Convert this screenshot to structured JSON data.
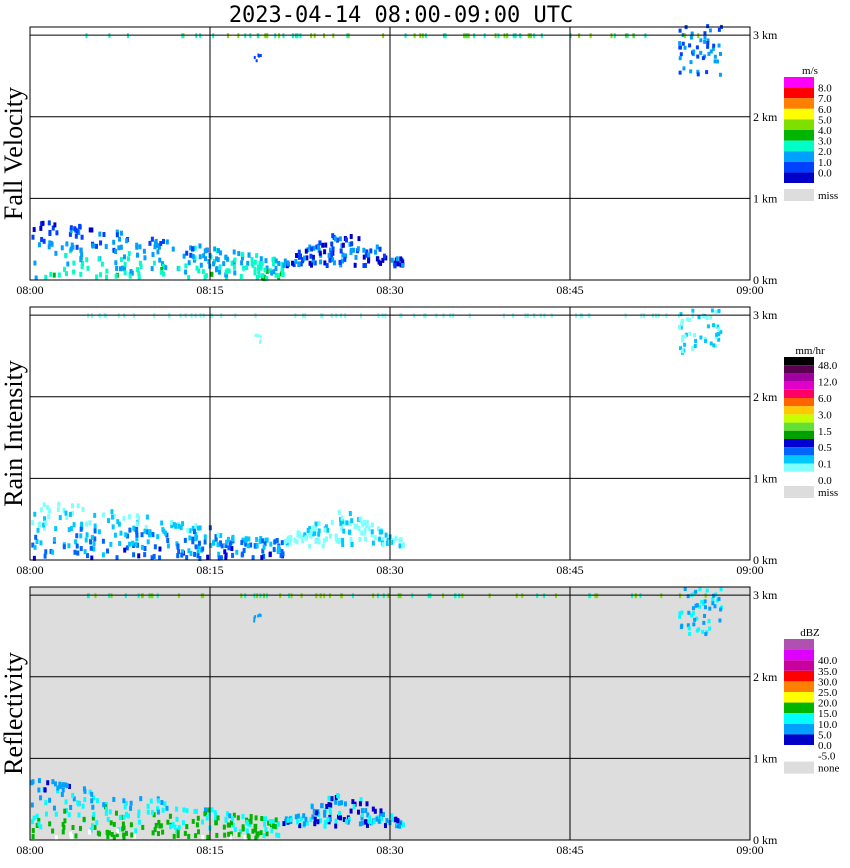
{
  "title": "2023-04-14   08:00-09:00 UTC",
  "chart_data": [
    {
      "type": "heatmap",
      "name": "Fall Velocity",
      "ylabel": "Fall Velocity",
      "unit": "m/s",
      "x_ticks": [
        "08:00",
        "08:15",
        "08:30",
        "08:45",
        "09:00"
      ],
      "y_ticks": [
        "0 km",
        "1 km",
        "2 km",
        "3 km"
      ],
      "xlim": [
        0,
        60
      ],
      "ylim": [
        0,
        3.1
      ],
      "background": "#ffffff",
      "colorbar": [
        {
          "label": "8.0",
          "color": "#ff00ff"
        },
        {
          "label": "7.0",
          "color": "#ff0000"
        },
        {
          "label": "6.0",
          "color": "#ff7f00"
        },
        {
          "label": "5.0",
          "color": "#ffff00"
        },
        {
          "label": "4.0",
          "color": "#7fe000"
        },
        {
          "label": "3.0",
          "color": "#00b400"
        },
        {
          "label": "2.0",
          "color": "#00ffc8"
        },
        {
          "label": "1.0",
          "color": "#00a0ff"
        },
        {
          "label": "0.0",
          "color": "#0040ff"
        },
        {
          "label": "",
          "color": "#0000c8"
        },
        {
          "label": "miss",
          "color": "#dddddd"
        }
      ]
    },
    {
      "type": "heatmap",
      "name": "Rain Intensity",
      "ylabel": "Rain Intensity",
      "unit": "mm/hr",
      "x_ticks": [
        "08:00",
        "08:15",
        "08:30",
        "08:45",
        "09:00"
      ],
      "y_ticks": [
        "0 km",
        "1 km",
        "2 km",
        "3 km"
      ],
      "xlim": [
        0,
        60
      ],
      "ylim": [
        0,
        3.1
      ],
      "background": "#ffffff",
      "colorbar": [
        {
          "label": "48.0",
          "color": "#000000"
        },
        {
          "label": "",
          "color": "#5a0050"
        },
        {
          "label": "12.0",
          "color": "#a000a0"
        },
        {
          "label": "",
          "color": "#e000c8"
        },
        {
          "label": "6.0",
          "color": "#ff0064"
        },
        {
          "label": "",
          "color": "#ff6400"
        },
        {
          "label": "3.0",
          "color": "#ffc800"
        },
        {
          "label": "",
          "color": "#c8ff00"
        },
        {
          "label": "1.5",
          "color": "#64e032"
        },
        {
          "label": "",
          "color": "#00a000"
        },
        {
          "label": "0.5",
          "color": "#0000d2"
        },
        {
          "label": "",
          "color": "#0064ff"
        },
        {
          "label": "0.1",
          "color": "#00c8ff"
        },
        {
          "label": "",
          "color": "#80ffff"
        },
        {
          "label": "0.0",
          "color": "#ffffff"
        },
        {
          "label": "miss",
          "color": "#dddddd"
        }
      ]
    },
    {
      "type": "heatmap",
      "name": "Reflectivity",
      "ylabel": "Reflectivity",
      "unit": "dBZ",
      "x_ticks": [
        "08:00",
        "08:15",
        "08:30",
        "08:45",
        "09:00"
      ],
      "y_ticks": [
        "0 km",
        "1 km",
        "2 km",
        "3 km"
      ],
      "xlim": [
        0,
        60
      ],
      "ylim": [
        0,
        3.1
      ],
      "background": "#dddddd",
      "colorbar": [
        {
          "label": "",
          "color": "#b050b0"
        },
        {
          "label": "40.0",
          "color": "#e000ff"
        },
        {
          "label": "35.0",
          "color": "#c800a0"
        },
        {
          "label": "30.0",
          "color": "#ff0000"
        },
        {
          "label": "25.0",
          "color": "#ff7f00"
        },
        {
          "label": "20.0",
          "color": "#ffff00"
        },
        {
          "label": "15.0",
          "color": "#00b400"
        },
        {
          "label": "10.0",
          "color": "#00ffff"
        },
        {
          "label": "5.0",
          "color": "#00a0ff"
        },
        {
          "label": "0.0",
          "color": "#0000c8"
        },
        {
          "label": "-5.0",
          "color": "#ffffff"
        },
        {
          "label": "none",
          "color": "#dddddd"
        }
      ]
    }
  ]
}
